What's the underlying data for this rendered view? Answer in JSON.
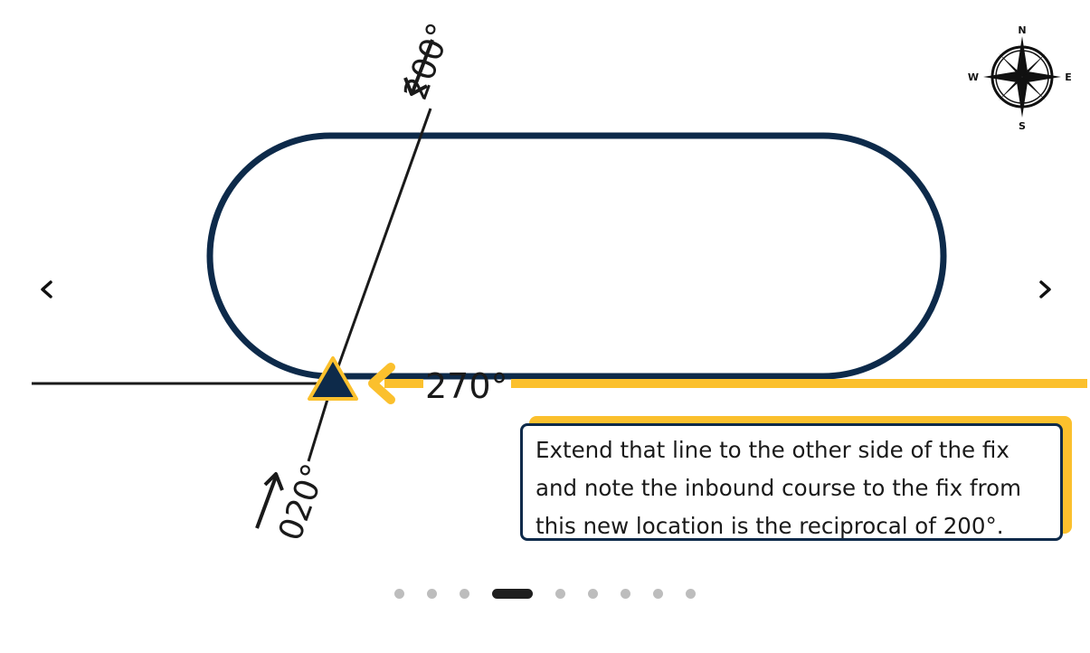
{
  "diagram": {
    "inbound_heading": "200°",
    "outbound_heading": "020°",
    "course_label": "270°",
    "compass": {
      "north": "N",
      "south": "S",
      "east": "E",
      "west": "W"
    },
    "fix_icon": "triangle-fix-icon",
    "callout_lines": [
      "Extend that line to the other side of the fix",
      "and note the inbound course to the fix from",
      "this new location is the reciprocal of 200°."
    ]
  },
  "carousel": {
    "prev_icon": "chevron-left-icon",
    "next_icon": "chevron-right-icon",
    "slide_count": 9,
    "active_index": 3
  },
  "colors": {
    "navy": "#0d2a4a",
    "gold": "#fbc02d",
    "text": "#1a1a1a",
    "dot": "#bdbdbd",
    "dot_active": "#1f1f1f"
  }
}
